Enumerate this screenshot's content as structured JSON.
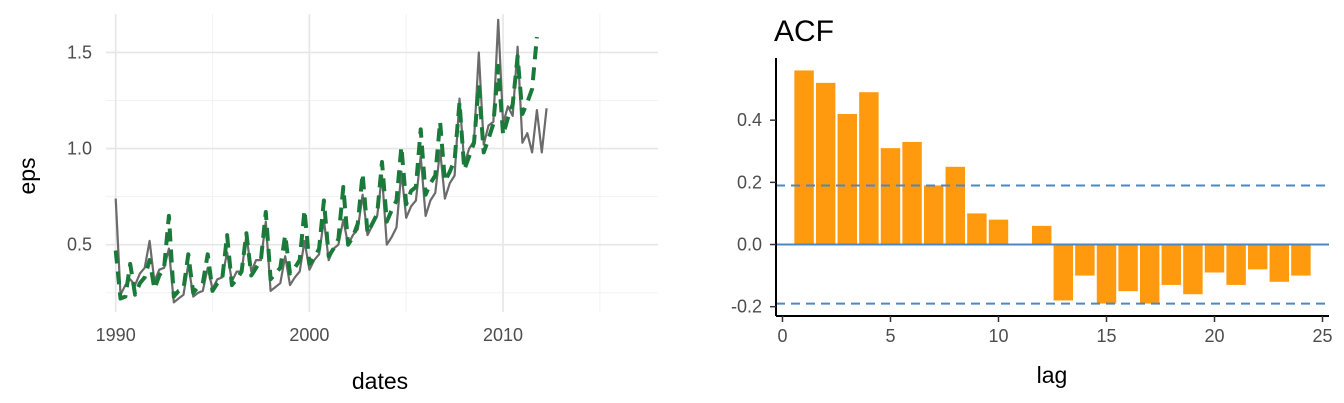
{
  "chart_data": [
    {
      "type": "line",
      "title": "",
      "xlabel": "dates",
      "ylabel": "eps",
      "xlim": [
        1989.5,
        2018.0
      ],
      "ylim": [
        0.15,
        1.7
      ],
      "xticks": [
        1990,
        2000,
        2010
      ],
      "xtick_labels": [
        "1990",
        "2000",
        "2010"
      ],
      "yticks": [
        0.5,
        1.0,
        1.5
      ],
      "ytick_labels": [
        "0.5",
        "1.0",
        "1.5"
      ],
      "grid": true,
      "legend": "none",
      "colors": {
        "actual": "#6b6b6b",
        "fitted": "#1a7a3a"
      },
      "start_year": 1990.0,
      "step": 0.25,
      "series": [
        {
          "style": "solid",
          "color": "#6b6b6b",
          "values": [
            0.74,
            0.24,
            0.29,
            0.32,
            0.29,
            0.35,
            0.38,
            0.52,
            0.31,
            0.37,
            0.38,
            0.48,
            0.2,
            0.22,
            0.24,
            0.4,
            0.23,
            0.25,
            0.26,
            0.38,
            0.27,
            0.32,
            0.33,
            0.46,
            0.31,
            0.36,
            0.36,
            0.55,
            0.36,
            0.42,
            0.42,
            0.62,
            0.26,
            0.28,
            0.3,
            0.44,
            0.29,
            0.33,
            0.36,
            0.52,
            0.37,
            0.42,
            0.45,
            0.63,
            0.42,
            0.48,
            0.5,
            0.63,
            0.5,
            0.55,
            0.58,
            0.76,
            0.55,
            0.6,
            0.65,
            0.86,
            0.5,
            0.54,
            0.59,
            0.88,
            0.64,
            0.7,
            0.73,
            0.96,
            0.65,
            0.73,
            0.77,
            0.99,
            0.74,
            0.82,
            0.86,
            1.26,
            0.92,
            1.0,
            1.04,
            1.5,
            1.02,
            1.12,
            1.14,
            1.67,
            1.13,
            1.22,
            1.17,
            1.53,
            1.03,
            1.08,
            0.98,
            1.2,
            0.98,
            1.21
          ]
        },
        {
          "style": "dashed",
          "color": "#1a7a3a",
          "values": [
            0.47,
            0.22,
            0.23,
            0.4,
            0.24,
            0.3,
            0.33,
            0.42,
            0.27,
            0.34,
            0.38,
            0.65,
            0.23,
            0.26,
            0.27,
            0.45,
            0.25,
            0.28,
            0.3,
            0.45,
            0.26,
            0.3,
            0.32,
            0.55,
            0.29,
            0.32,
            0.36,
            0.56,
            0.34,
            0.38,
            0.42,
            0.67,
            0.32,
            0.35,
            0.38,
            0.55,
            0.35,
            0.38,
            0.42,
            0.68,
            0.4,
            0.43,
            0.48,
            0.73,
            0.44,
            0.48,
            0.53,
            0.8,
            0.5,
            0.54,
            0.61,
            0.87,
            0.56,
            0.61,
            0.66,
            0.93,
            0.62,
            0.68,
            0.73,
            1.01,
            0.71,
            0.78,
            0.8,
            1.1,
            0.76,
            0.82,
            0.86,
            1.14,
            0.83,
            0.88,
            0.94,
            1.24,
            0.89,
            0.96,
            1.03,
            1.33,
            0.98,
            1.05,
            1.13,
            1.43,
            1.07,
            1.16,
            1.23,
            1.48,
            1.18,
            1.24,
            1.31,
            1.58
          ]
        }
      ]
    },
    {
      "type": "bar",
      "title": "ACF",
      "xlabel": "lag",
      "ylabel": "",
      "xlim": [
        -0.3,
        25.3
      ],
      "ylim": [
        -0.23,
        0.6
      ],
      "xticks": [
        0,
        5,
        10,
        15,
        20,
        25
      ],
      "xtick_labels": [
        "0",
        "5",
        "10",
        "15",
        "20",
        "25"
      ],
      "yticks": [
        -0.2,
        0.0,
        0.2,
        0.4
      ],
      "ytick_labels": [
        "-0.2",
        "0.0",
        "0.2",
        "0.4"
      ],
      "grid": false,
      "legend": "none",
      "bar_color": "#ff9a0e",
      "line_color": "#4b87c5",
      "confidence_bounds": [
        0.19,
        -0.19
      ],
      "lags": [
        1,
        2,
        3,
        4,
        5,
        6,
        7,
        8,
        9,
        10,
        11,
        12,
        13,
        14,
        15,
        16,
        17,
        18,
        19,
        20,
        21,
        22,
        23,
        24
      ],
      "values": [
        0.56,
        0.52,
        0.42,
        0.49,
        0.31,
        0.33,
        0.19,
        0.25,
        0.1,
        0.08,
        0.0,
        0.06,
        -0.18,
        -0.1,
        -0.19,
        -0.15,
        -0.19,
        -0.13,
        -0.16,
        -0.09,
        -0.13,
        -0.08,
        -0.12,
        -0.1
      ]
    }
  ]
}
